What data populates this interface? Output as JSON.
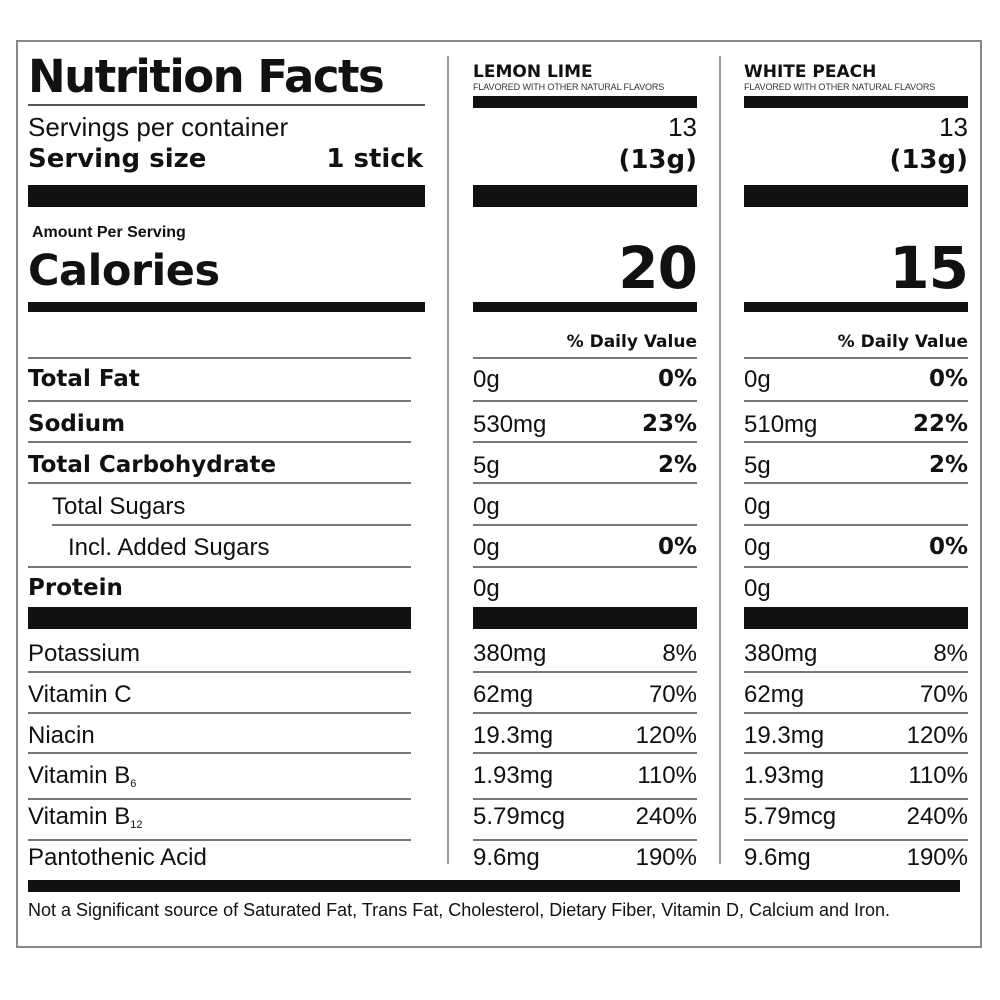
{
  "label": {
    "title": "Nutrition Facts",
    "servings_per_container_label": "Servings per container",
    "serving_size_label": "Serving size",
    "serving_size_value": "1 stick",
    "amount_per_serving": "Amount Per Serving",
    "calories_label": "Calories",
    "daily_value_header": "% Daily Value",
    "footnote": "Not a Significant source of Saturated Fat, Trans Fat, Cholesterol, Dietary Fiber, Vitamin D, Calcium and Iron."
  },
  "flavors": [
    {
      "name": "LEMON LIME",
      "subtitle": "FLAVORED WITH OTHER NATURAL FLAVORS",
      "servings": "13",
      "serving_grams": "(13g)",
      "calories": "20"
    },
    {
      "name": "WHITE PEACH",
      "subtitle": "FLAVORED WITH OTHER NATURAL FLAVORS",
      "servings": "13",
      "serving_grams": "(13g)",
      "calories": "15"
    }
  ],
  "nutrients": [
    {
      "name": "Total Fat",
      "values": [
        {
          "amount": "0g",
          "dv": "0%"
        },
        {
          "amount": "0g",
          "dv": "0%"
        }
      ]
    },
    {
      "name": "Sodium",
      "values": [
        {
          "amount": "530mg",
          "dv": "23%"
        },
        {
          "amount": "510mg",
          "dv": "22%"
        }
      ]
    },
    {
      "name": "Total Carbohydrate",
      "values": [
        {
          "amount": "5g",
          "dv": "2%"
        },
        {
          "amount": "5g",
          "dv": "2%"
        }
      ]
    },
    {
      "name": "Total Sugars",
      "values": [
        {
          "amount": "0g",
          "dv": ""
        },
        {
          "amount": "0g",
          "dv": ""
        }
      ]
    },
    {
      "name": "Incl. Added Sugars",
      "values": [
        {
          "amount": "0g",
          "dv": "0%"
        },
        {
          "amount": "0g",
          "dv": "0%"
        }
      ]
    },
    {
      "name": "Protein",
      "values": [
        {
          "amount": "0g",
          "dv": ""
        },
        {
          "amount": "0g",
          "dv": ""
        }
      ]
    }
  ],
  "vitamins": [
    {
      "name": "Potassium",
      "sub": "",
      "values": [
        {
          "amount": "380mg",
          "dv": "8%"
        },
        {
          "amount": "380mg",
          "dv": "8%"
        }
      ]
    },
    {
      "name": "Vitamin C",
      "sub": "",
      "values": [
        {
          "amount": "62mg",
          "dv": "70%"
        },
        {
          "amount": "62mg",
          "dv": "70%"
        }
      ]
    },
    {
      "name": "Niacin",
      "sub": "",
      "values": [
        {
          "amount": "19.3mg",
          "dv": "120%"
        },
        {
          "amount": "19.3mg",
          "dv": "120%"
        }
      ]
    },
    {
      "name": "Vitamin B",
      "sub": "6",
      "values": [
        {
          "amount": "1.93mg",
          "dv": "110%"
        },
        {
          "amount": "1.93mg",
          "dv": "110%"
        }
      ]
    },
    {
      "name": "Vitamin B",
      "sub": "12",
      "values": [
        {
          "amount": "5.79mcg",
          "dv": "240%"
        },
        {
          "amount": "5.79mcg",
          "dv": "240%"
        }
      ]
    },
    {
      "name": "Pantothenic Acid",
      "sub": "",
      "values": [
        {
          "amount": "9.6mg",
          "dv": "190%"
        },
        {
          "amount": "9.6mg",
          "dv": "190%"
        }
      ]
    }
  ]
}
